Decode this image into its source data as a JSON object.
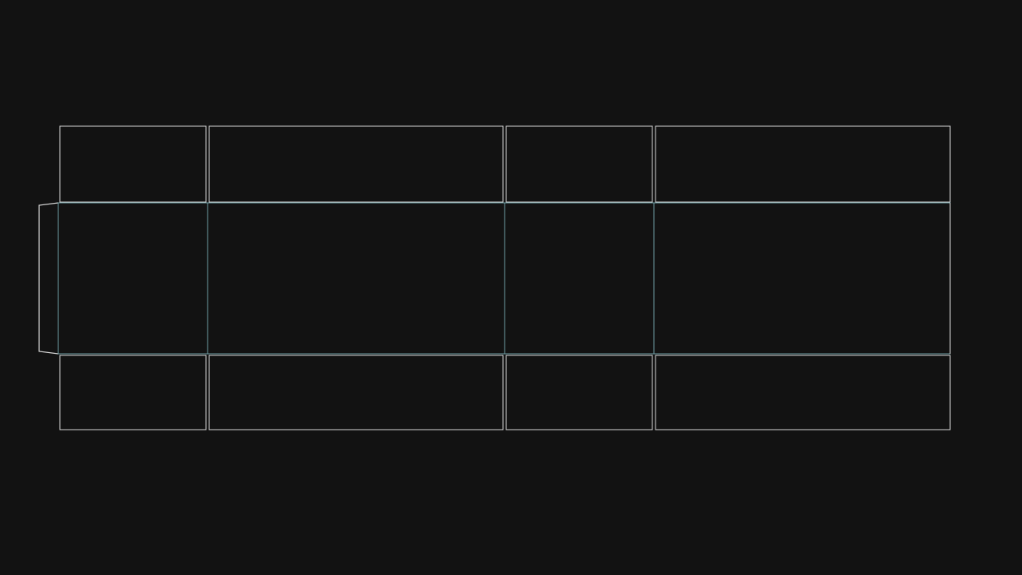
{
  "dieline": {
    "colors": {
      "background": "#121212",
      "cut_line": "#d6d6d6",
      "fold_line": "#6f9ea4"
    }
  }
}
